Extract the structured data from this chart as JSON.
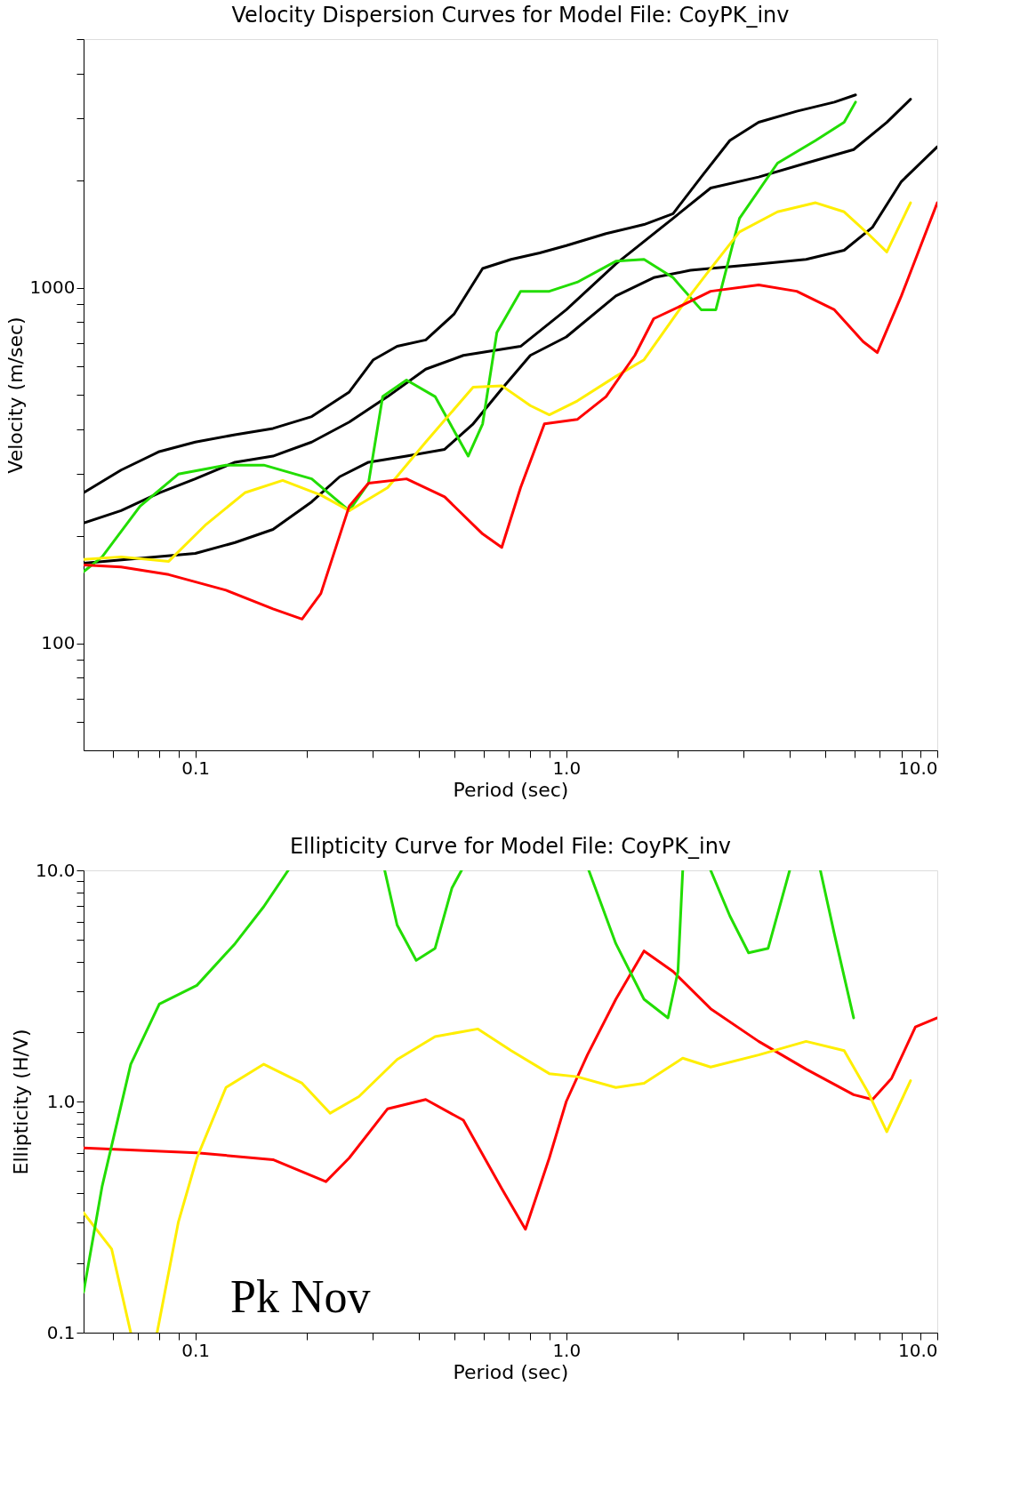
{
  "chart_data": [
    {
      "type": "line",
      "title": "Velocity Dispersion Curves for Model File: CoyPK_inv",
      "xlabel": "Period (sec)",
      "ylabel": "Velocity (m/sec)",
      "log": "xy",
      "grid": false,
      "legend": false,
      "xlim": [
        0.05,
        10
      ],
      "ylim": [
        50,
        5000
      ],
      "xticks": [
        {
          "value": 0.06,
          "label": null
        },
        {
          "value": 0.07,
          "label": null
        },
        {
          "value": 0.08,
          "label": null
        },
        {
          "value": 0.09,
          "label": null
        },
        0.1,
        {
          "value": 0.2,
          "label": null
        },
        {
          "value": 0.3,
          "label": null
        },
        {
          "value": 0.4,
          "label": null
        },
        {
          "value": 0.5,
          "label": null
        },
        {
          "value": 0.6,
          "label": null
        },
        {
          "value": 0.7,
          "label": null
        },
        {
          "value": 0.8,
          "label": null
        },
        {
          "value": 0.9,
          "label": null
        },
        {
          "value": 1,
          "label": "1.0"
        },
        {
          "value": 2,
          "label": null
        },
        {
          "value": 3,
          "label": null
        },
        {
          "value": 4,
          "label": null
        },
        {
          "value": 5,
          "label": null
        },
        {
          "value": 6,
          "label": null
        },
        {
          "value": 7,
          "label": null
        },
        {
          "value": 8,
          "label": null
        },
        {
          "value": 9,
          "label": null
        },
        {
          "value": 10,
          "label": "10.0"
        }
      ],
      "yticks": [
        {
          "value": 60,
          "label": null
        },
        {
          "value": 70,
          "label": null
        },
        {
          "value": 80,
          "label": null
        },
        {
          "value": 90,
          "label": null
        },
        100,
        {
          "value": 200,
          "label": null
        },
        {
          "value": 300,
          "label": null
        },
        {
          "value": 400,
          "label": null
        },
        {
          "value": 500,
          "label": null
        },
        {
          "value": 600,
          "label": null
        },
        {
          "value": 700,
          "label": null
        },
        {
          "value": 800,
          "label": null
        },
        {
          "value": 900,
          "label": null
        },
        1000,
        {
          "value": 2000,
          "label": null
        },
        {
          "value": 3000,
          "label": null
        },
        {
          "value": 4000,
          "label": null
        },
        {
          "value": 5000,
          "label": null
        }
      ],
      "series": [
        {
          "color": "#000000",
          "x": [
            0.05,
            0.0631,
            0.08,
            0.1,
            0.128,
            0.162,
            0.206,
            0.26,
            0.302,
            0.35,
            0.418,
            0.498,
            0.595,
            0.71,
            0.848,
            1.0,
            1.28,
            1.62,
            1.94,
            2.31,
            2.76,
            3.3,
            4.18,
            5.28,
            6.02
          ],
          "values": [
            265,
            307,
            346,
            368,
            386,
            402,
            434,
            509,
            627,
            684,
            713,
            842,
            1132,
            1201,
            1252,
            1313,
            1419,
            1505,
            1615,
            2047,
            2594,
            2918,
            3135,
            3325,
            3484
          ]
        },
        {
          "color": "#000000",
          "x": [
            0.05,
            0.0631,
            0.08,
            0.1,
            0.128,
            0.162,
            0.206,
            0.26,
            0.33,
            0.418,
            0.528,
            0.753,
            1.0,
            1.36,
            1.94,
            2.45,
            3.3,
            4.43,
            5.95,
            7.31,
            8.47
          ],
          "values": [
            218,
            236,
            265,
            290,
            323,
            336,
            368,
            419,
            494,
            590,
            645,
            684,
            867,
            1166,
            1567,
            1906,
            2047,
            2240,
            2445,
            2918,
            3388
          ]
        },
        {
          "color": "#000000",
          "x": [
            0.05,
            0.1,
            0.128,
            0.162,
            0.206,
            0.245,
            0.293,
            0.371,
            0.47,
            0.561,
            0.67,
            0.8,
            1.0,
            1.36,
            1.72,
            2.16,
            3.3,
            4.43,
            5.61,
            6.69,
            8.0,
            10
          ],
          "values": [
            168,
            179,
            192,
            209,
            250,
            294,
            323,
            336,
            351,
            414,
            519,
            645,
            727,
            948,
            1067,
            1119,
            1166,
            1201,
            1274,
            1479,
            1987,
            2489
          ]
        },
        {
          "color": "#22dd00",
          "x": [
            0.05,
            0.0561,
            0.071,
            0.09,
            0.121,
            0.153,
            0.206,
            0.26,
            0.293,
            0.32,
            0.371,
            0.443,
            0.544,
            0.595,
            0.65,
            0.753,
            0.9,
            1.07,
            1.36,
            1.62,
            1.94,
            2.31,
            2.53,
            2.93,
            3.71,
            4.7,
            5.61,
            6.02
          ],
          "values": [
            159,
            175,
            243,
            299,
            317,
            317,
            290,
            236,
            282,
            494,
            550,
            494,
            336,
            414,
            748,
            977,
            977,
            1036,
            1187,
            1201,
            1067,
            867,
            867,
            1567,
            2240,
            2594,
            2918,
            3325
          ]
        },
        {
          "color": "#ffee00",
          "x": [
            0.05,
            0.0631,
            0.0848,
            0.107,
            0.136,
            0.172,
            0.218,
            0.26,
            0.33,
            0.418,
            0.561,
            0.67,
            0.8,
            0.9,
            1.07,
            1.36,
            1.62,
            2.06,
            2.45,
            2.93,
            3.71,
            4.7,
            5.61,
            6.5,
            7.31,
            8.47
          ],
          "values": [
            172,
            175,
            170,
            216,
            265,
            287,
            261,
            236,
            274,
            368,
            525,
            530,
            466,
            439,
            480,
            563,
            627,
            894,
            1132,
            1435,
            1634,
            1733,
            1634,
            1419,
            1260,
            1733
          ]
        },
        {
          "color": "#ff0000",
          "x": [
            0.05,
            0.0631,
            0.0848,
            0.121,
            0.162,
            0.194,
            0.218,
            0.26,
            0.293,
            0.371,
            0.47,
            0.595,
            0.67,
            0.753,
            0.873,
            1.07,
            1.28,
            1.53,
            1.72,
            2.06,
            2.45,
            3.3,
            4.18,
            5.28,
            6.31,
            6.89,
            8.0,
            10
          ],
          "values": [
            166,
            164,
            156,
            141,
            125,
            117,
            138,
            243,
            282,
            290,
            258,
            203,
            186,
            274,
            414,
            426,
            494,
            645,
            818,
            894,
            977,
            1018,
            977,
            867,
            705,
            657,
            948,
            1733
          ]
        }
      ]
    },
    {
      "type": "line",
      "title": "Ellipticity Curve for Model File: CoyPK_inv",
      "xlabel": "Period (sec)",
      "ylabel": "Ellipticity (H/V)",
      "log": "xy",
      "grid": false,
      "legend": false,
      "xlim": [
        0.05,
        10
      ],
      "ylim": [
        0.1,
        10
      ],
      "xticks": [
        {
          "value": 0.06,
          "label": null
        },
        {
          "value": 0.07,
          "label": null
        },
        {
          "value": 0.08,
          "label": null
        },
        {
          "value": 0.09,
          "label": null
        },
        0.1,
        {
          "value": 0.2,
          "label": null
        },
        {
          "value": 0.3,
          "label": null
        },
        {
          "value": 0.4,
          "label": null
        },
        {
          "value": 0.5,
          "label": null
        },
        {
          "value": 0.6,
          "label": null
        },
        {
          "value": 0.7,
          "label": null
        },
        {
          "value": 0.8,
          "label": null
        },
        {
          "value": 0.9,
          "label": null
        },
        {
          "value": 1,
          "label": "1.0"
        },
        {
          "value": 2,
          "label": null
        },
        {
          "value": 3,
          "label": null
        },
        {
          "value": 4,
          "label": null
        },
        {
          "value": 5,
          "label": null
        },
        {
          "value": 6,
          "label": null
        },
        {
          "value": 7,
          "label": null
        },
        {
          "value": 8,
          "label": null
        },
        {
          "value": 9,
          "label": null
        },
        {
          "value": 10,
          "label": "10.0"
        }
      ],
      "yticks": [
        0.1,
        {
          "value": 0.2,
          "label": null
        },
        {
          "value": 0.3,
          "label": null
        },
        {
          "value": 0.4,
          "label": null
        },
        {
          "value": 0.5,
          "label": null
        },
        {
          "value": 0.6,
          "label": null
        },
        {
          "value": 0.7,
          "label": null
        },
        {
          "value": 0.8,
          "label": null
        },
        {
          "value": 0.9,
          "label": null
        },
        {
          "value": 1,
          "label": "1.0"
        },
        {
          "value": 2,
          "label": null
        },
        {
          "value": 3,
          "label": null
        },
        {
          "value": 4,
          "label": null
        },
        {
          "value": 5,
          "label": null
        },
        {
          "value": 6,
          "label": null
        },
        {
          "value": 7,
          "label": null
        },
        {
          "value": 8,
          "label": null
        },
        {
          "value": 9,
          "label": null
        },
        {
          "value": 10,
          "label": "10.0"
        }
      ],
      "annotations": [
        "Pk Nov"
      ],
      "series": [
        {
          "color": "#ff0000",
          "x": [
            0.05,
            0.101,
            0.162,
            0.225,
            0.26,
            0.33,
            0.418,
            0.528,
            0.67,
            0.776,
            0.9,
            1.0,
            1.14,
            1.36,
            1.62,
            1.94,
            2.45,
            3.3,
            4.43,
            5.95,
            6.69,
            7.53,
            8.73,
            10
          ],
          "values": [
            0.63,
            0.6,
            0.56,
            0.45,
            0.57,
            0.93,
            1.02,
            0.83,
            0.42,
            0.28,
            0.57,
            1.0,
            1.59,
            2.77,
            4.48,
            3.65,
            2.52,
            1.82,
            1.38,
            1.07,
            1.02,
            1.26,
            2.1,
            2.3
          ]
        },
        {
          "color": "#ffee00",
          "x": [
            0.05,
            0.0595,
            0.067,
            0.072,
            0.0789,
            0.09,
            0.101,
            0.121,
            0.153,
            0.194,
            0.231,
            0.276,
            0.35,
            0.443,
            0.578,
            0.71,
            0.9,
            1.07,
            1.36,
            1.62,
            2.06,
            2.45,
            3.3,
            4.43,
            5.61,
            6.5,
            7.31,
            8.47
          ],
          "values": [
            0.33,
            0.23,
            0.1,
            null,
            0.1,
            0.3,
            0.57,
            1.15,
            1.45,
            1.2,
            0.89,
            1.05,
            1.52,
            1.91,
            2.06,
            1.66,
            1.32,
            1.28,
            1.15,
            1.2,
            1.54,
            1.41,
            1.59,
            1.82,
            1.66,
            1.1,
            0.74,
            1.23
          ]
        },
        {
          "color": "#22dd00",
          "x": [
            0.05,
            0.0561,
            0.067,
            0.08,
            0.101,
            0.128,
            0.153,
            0.178,
            0.25,
            0.324,
            0.35,
            0.394,
            0.443,
            0.492,
            0.522,
            0.8,
            1.15,
            1.36,
            1.62,
            1.88,
            2.0,
            2.06,
            2.3,
            2.45,
            2.76,
            3.1,
            3.5,
            4.0,
            4.4,
            4.84,
            5.28,
            5.95
          ],
          "values": [
            0.15,
            0.43,
            1.45,
            2.64,
            3.18,
            4.82,
            6.97,
            10,
            null,
            10,
            5.8,
            4.08,
            4.6,
            8.4,
            10,
            null,
            10,
            4.82,
            2.77,
            2.3,
            3.65,
            10,
            null,
            10,
            6.35,
            4.4,
            4.6,
            10,
            null,
            10,
            5.3,
            2.3
          ]
        }
      ]
    }
  ]
}
